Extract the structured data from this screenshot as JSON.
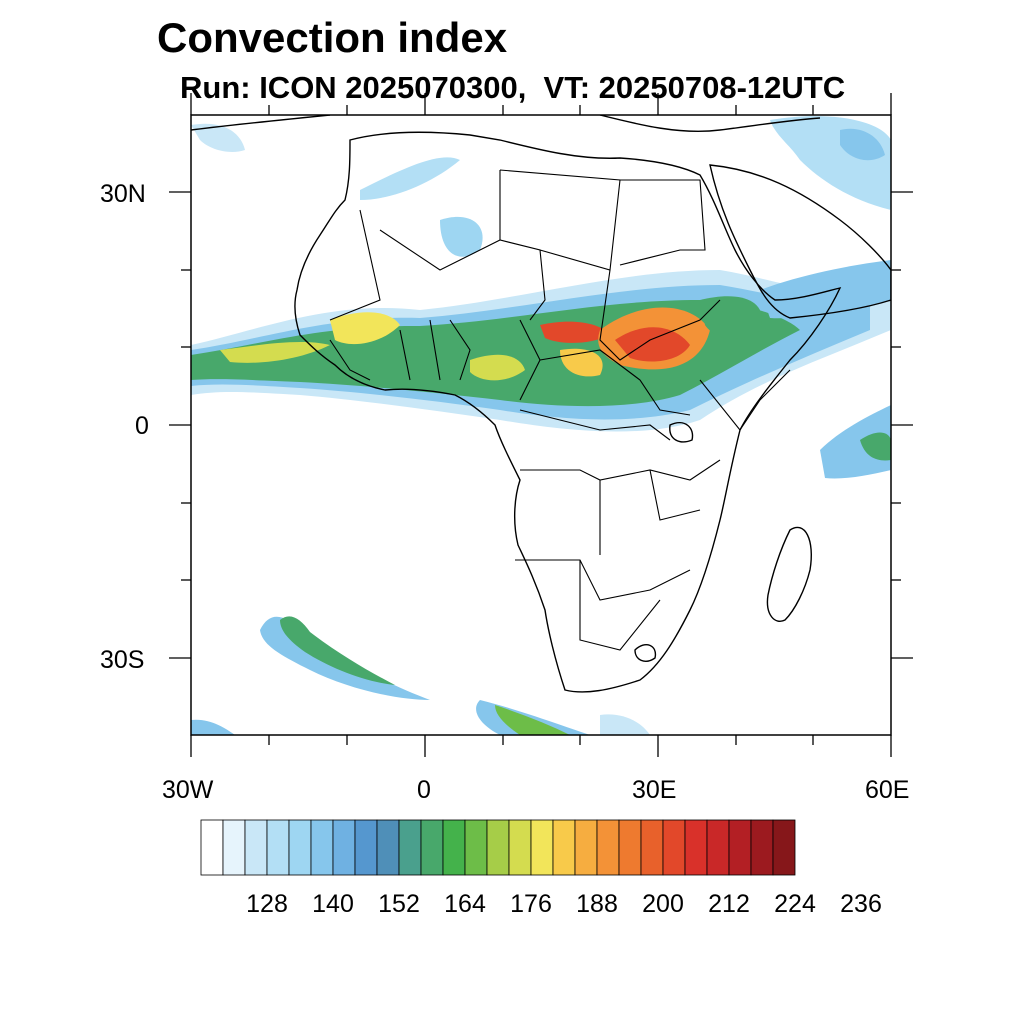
{
  "title": "Convection index",
  "subtitle": "Run: ICON 2025070300,  VT: 20250708-12UTC",
  "lat_labels": [
    "30N",
    "0",
    "30S"
  ],
  "lon_labels": [
    "30W",
    "0",
    "30E",
    "60E"
  ],
  "colorbar": {
    "tick_labels": [
      "128",
      "140",
      "152",
      "164",
      "176",
      "188",
      "200",
      "212",
      "224",
      "236"
    ],
    "colors": [
      "#ffffff",
      "#e6f4fc",
      "#c9e7f7",
      "#b3dff5",
      "#9ed6f2",
      "#86c6ec",
      "#6fb1e2",
      "#5597cf",
      "#4f8fb8",
      "#4aa08d",
      "#48a86b",
      "#44b24b",
      "#6dbd48",
      "#a6cd48",
      "#d4dc4f",
      "#f2e55a",
      "#f8ca4a",
      "#f6ad40",
      "#f39237",
      "#ee7a2f",
      "#e8612b",
      "#e2482a",
      "#d9312a",
      "#c92828",
      "#b31f24",
      "#9c1a1f",
      "#86171a"
    ]
  },
  "map": {
    "lon_range": [
      -30,
      60
    ],
    "lat_range": [
      -40,
      40
    ]
  }
}
